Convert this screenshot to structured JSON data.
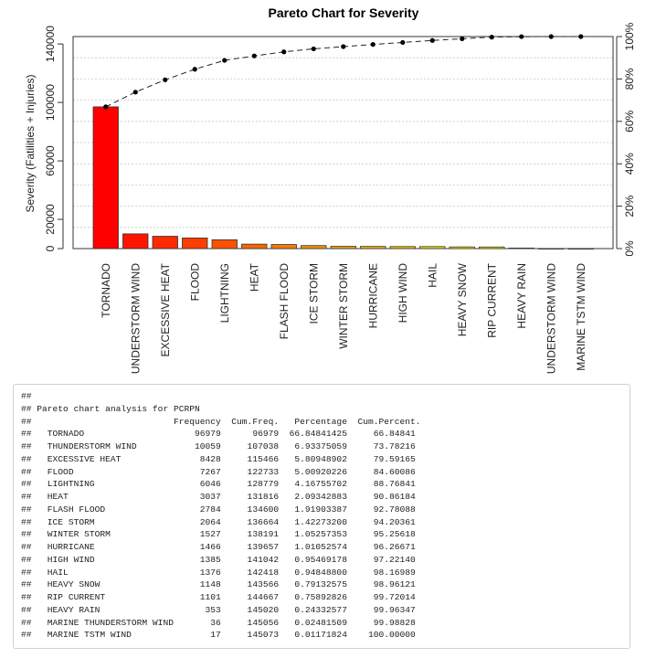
{
  "chart_data": {
    "type": "bar",
    "title": "Pareto Chart for Severity",
    "ylabel": "Severity (Fatilities + Injuries)",
    "ylim": [
      0,
      145073
    ],
    "y_ticks": [
      "0",
      "20000",
      "60000",
      "100000",
      "140000"
    ],
    "y2_ticks": [
      "0%",
      "20%",
      "40%",
      "60%",
      "80%",
      "100%"
    ],
    "categories": [
      "TORNADO",
      "UNDERSTORM WIND",
      "EXCESSIVE HEAT",
      "FLOOD",
      "LIGHTNING",
      "HEAT",
      "FLASH FLOOD",
      "ICE STORM",
      "WINTER STORM",
      "HURRICANE",
      "HIGH WIND",
      "HAIL",
      "HEAVY SNOW",
      "RIP CURRENT",
      "HEAVY RAIN",
      "UNDERSTORM WIND",
      "MARINE TSTM WIND"
    ],
    "values": [
      96979,
      10059,
      8428,
      7267,
      6046,
      3037,
      2784,
      2064,
      1527,
      1466,
      1385,
      1376,
      1148,
      1101,
      353,
      36,
      17
    ],
    "cumulative": [
      96979,
      107038,
      115466,
      122733,
      128779,
      131816,
      134600,
      136664,
      138191,
      139657,
      141042,
      142418,
      143566,
      144667,
      145020,
      145056,
      145073
    ],
    "bar_colors": [
      "#ff0000",
      "#fe1500",
      "#fd2a00",
      "#fc3e00",
      "#fb5200",
      "#fa6600",
      "#f97a00",
      "#f88e00",
      "#f7a200",
      "#f6b500",
      "#f5c800",
      "#f4db00",
      "#f0e800",
      "#e8e800",
      "#c0c000",
      "#a0a000",
      "#808000"
    ],
    "grid": true
  },
  "console": {
    "lines": [
      "##",
      "## Pareto chart analysis for PCRPN",
      "##                           Frequency  Cum.Freq.   Percentage  Cum.Percent.",
      "##   TORNADO                     96979      96979  66.84841425     66.84841",
      "##   THUNDERSTORM WIND           10059     107038   6.93375059     73.78216",
      "##   EXCESSIVE HEAT               8428     115466   5.80948902     79.59165",
      "##   FLOOD                        7267     122733   5.00920226     84.60086",
      "##   LIGHTNING                    6046     128779   4.16755702     88.76841",
      "##   HEAT                         3037     131816   2.09342883     90.86184",
      "##   FLASH FLOOD                  2784     134600   1.91903387     92.78088",
      "##   ICE STORM                    2064     136664   1.42273200     94.20361",
      "##   WINTER STORM                 1527     138191   1.05257353     95.25618",
      "##   HURRICANE                    1466     139657   1.01052574     96.26671",
      "##   HIGH WIND                    1385     141042   0.95469178     97.22140",
      "##   HAIL                         1376     142418   0.94848800     98.16989",
      "##   HEAVY SNOW                   1148     143566   0.79132575     98.96121",
      "##   RIP CURRENT                  1101     144667   0.75892826     99.72014",
      "##   HEAVY RAIN                    353     145020   0.24332577     99.96347",
      "##   MARINE THUNDERSTORM WIND       36     145056   0.02481509     99.98828",
      "##   MARINE TSTM WIND               17     145073   0.01171824    100.00000"
    ]
  }
}
